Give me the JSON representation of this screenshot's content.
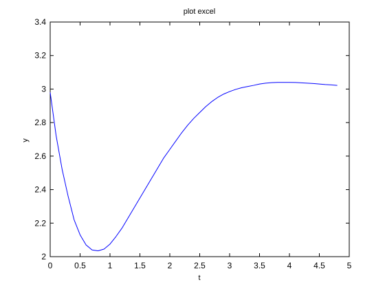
{
  "chart_data": {
    "type": "line",
    "title": "plot excel",
    "xlabel": "t",
    "ylabel": "y",
    "xlim": [
      0,
      5
    ],
    "ylim": [
      2,
      3.4
    ],
    "xticks": [
      0,
      0.5,
      1,
      1.5,
      2,
      2.5,
      3,
      3.5,
      4,
      4.5,
      5
    ],
    "xtick_labels": [
      "0",
      "0.5",
      "1",
      "1.5",
      "2",
      "2.5",
      "3",
      "3.5",
      "4",
      "4.5",
      "5"
    ],
    "yticks": [
      2,
      2.2,
      2.4,
      2.6,
      2.8,
      3,
      3.2,
      3.4
    ],
    "ytick_labels": [
      "2",
      "2.2",
      "2.4",
      "2.6",
      "2.8",
      "3",
      "3.2",
      "3.4"
    ],
    "grid": false,
    "series": [
      {
        "color": "#0000ff",
        "x": [
          0,
          0.1,
          0.2,
          0.3,
          0.4,
          0.5,
          0.6,
          0.7,
          0.8,
          0.9,
          1.0,
          1.1,
          1.2,
          1.3,
          1.4,
          1.5,
          1.6,
          1.7,
          1.8,
          1.9,
          2.0,
          2.1,
          2.2,
          2.3,
          2.4,
          2.5,
          2.6,
          2.7,
          2.8,
          2.9,
          3.0,
          3.1,
          3.2,
          3.3,
          3.4,
          3.5,
          3.6,
          3.7,
          3.8,
          3.9,
          4.0,
          4.1,
          4.2,
          4.3,
          4.4,
          4.5,
          4.6,
          4.7,
          4.8
        ],
        "y": [
          2.98,
          2.72,
          2.52,
          2.36,
          2.22,
          2.13,
          2.07,
          2.04,
          2.035,
          2.045,
          2.075,
          2.12,
          2.17,
          2.23,
          2.29,
          2.35,
          2.41,
          2.47,
          2.53,
          2.59,
          2.64,
          2.69,
          2.74,
          2.785,
          2.825,
          2.86,
          2.895,
          2.925,
          2.95,
          2.97,
          2.985,
          2.998,
          3.008,
          3.015,
          3.022,
          3.03,
          3.035,
          3.038,
          3.04,
          3.04,
          3.04,
          3.039,
          3.037,
          3.035,
          3.033,
          3.03,
          3.027,
          3.025,
          3.022
        ]
      }
    ]
  }
}
